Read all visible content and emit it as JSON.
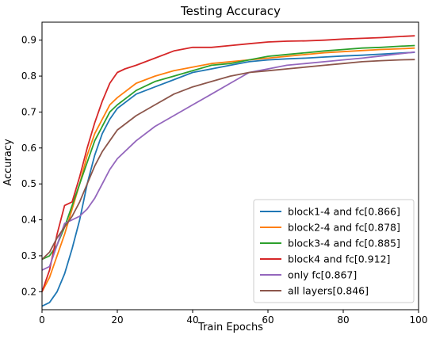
{
  "chart_data": {
    "type": "line",
    "title": "Testing Accuracy",
    "xlabel": "Train Epochs",
    "ylabel": "Accuracy",
    "xlim": [
      0,
      100
    ],
    "ylim": [
      0.15,
      0.95
    ],
    "xticks": [
      0,
      20,
      40,
      60,
      80,
      100
    ],
    "yticks": [
      0.2,
      0.3,
      0.4,
      0.5,
      0.6,
      0.7,
      0.8,
      0.9
    ],
    "grid": false,
    "legend_position": "bottom-right",
    "series": [
      {
        "name": "block1-4 and fc[0.866]",
        "color": "#1f77b4",
        "x": [
          0,
          2,
          4,
          6,
          8,
          10,
          12,
          14,
          16,
          18,
          20,
          25,
          30,
          35,
          40,
          45,
          50,
          55,
          60,
          65,
          70,
          75,
          80,
          85,
          90,
          95,
          99
        ],
        "y": [
          0.16,
          0.17,
          0.2,
          0.25,
          0.32,
          0.4,
          0.5,
          0.58,
          0.64,
          0.68,
          0.71,
          0.75,
          0.77,
          0.79,
          0.81,
          0.82,
          0.83,
          0.84,
          0.845,
          0.848,
          0.85,
          0.853,
          0.856,
          0.858,
          0.861,
          0.864,
          0.866
        ]
      },
      {
        "name": "block2-4 and fc[0.878]",
        "color": "#ff7f0e",
        "x": [
          0,
          2,
          4,
          6,
          8,
          10,
          12,
          14,
          16,
          18,
          20,
          25,
          30,
          35,
          40,
          45,
          50,
          55,
          60,
          65,
          70,
          75,
          80,
          85,
          90,
          95,
          99
        ],
        "y": [
          0.2,
          0.24,
          0.3,
          0.36,
          0.43,
          0.5,
          0.58,
          0.64,
          0.68,
          0.72,
          0.74,
          0.78,
          0.8,
          0.815,
          0.825,
          0.835,
          0.84,
          0.845,
          0.85,
          0.855,
          0.86,
          0.865,
          0.868,
          0.871,
          0.874,
          0.876,
          0.878
        ]
      },
      {
        "name": "block3-4 and fc[0.885]",
        "color": "#2ca02c",
        "x": [
          0,
          2,
          4,
          6,
          8,
          10,
          12,
          14,
          16,
          18,
          20,
          25,
          30,
          35,
          40,
          45,
          50,
          55,
          60,
          65,
          70,
          75,
          80,
          85,
          90,
          95,
          99
        ],
        "y": [
          0.29,
          0.3,
          0.33,
          0.38,
          0.44,
          0.5,
          0.56,
          0.62,
          0.66,
          0.7,
          0.72,
          0.76,
          0.785,
          0.8,
          0.815,
          0.83,
          0.835,
          0.845,
          0.855,
          0.86,
          0.865,
          0.87,
          0.874,
          0.878,
          0.88,
          0.883,
          0.885
        ]
      },
      {
        "name": "block4 and fc[0.912]",
        "color": "#d62728",
        "x": [
          0,
          2,
          4,
          6,
          8,
          10,
          12,
          14,
          16,
          18,
          20,
          22,
          25,
          30,
          35,
          40,
          45,
          50,
          55,
          60,
          65,
          70,
          75,
          80,
          85,
          90,
          95,
          99
        ],
        "y": [
          0.2,
          0.26,
          0.36,
          0.44,
          0.45,
          0.52,
          0.6,
          0.67,
          0.73,
          0.78,
          0.81,
          0.82,
          0.83,
          0.85,
          0.87,
          0.88,
          0.88,
          0.885,
          0.89,
          0.895,
          0.897,
          0.898,
          0.9,
          0.903,
          0.905,
          0.907,
          0.91,
          0.912
        ]
      },
      {
        "name": "only fc[0.867]",
        "color": "#9467bd",
        "x": [
          0,
          2,
          4,
          6,
          8,
          10,
          12,
          14,
          16,
          18,
          20,
          25,
          30,
          35,
          40,
          45,
          50,
          55,
          60,
          65,
          70,
          75,
          80,
          85,
          90,
          95,
          99
        ],
        "y": [
          0.26,
          0.27,
          0.33,
          0.39,
          0.4,
          0.41,
          0.43,
          0.46,
          0.5,
          0.54,
          0.57,
          0.62,
          0.66,
          0.69,
          0.72,
          0.75,
          0.78,
          0.81,
          0.82,
          0.83,
          0.835,
          0.84,
          0.845,
          0.85,
          0.856,
          0.862,
          0.867
        ]
      },
      {
        "name": "all layers[0.846]",
        "color": "#8c564b",
        "x": [
          0,
          2,
          4,
          6,
          8,
          10,
          12,
          14,
          16,
          18,
          20,
          25,
          30,
          35,
          40,
          45,
          50,
          55,
          60,
          65,
          70,
          75,
          80,
          85,
          90,
          95,
          99
        ],
        "y": [
          0.29,
          0.31,
          0.35,
          0.38,
          0.41,
          0.45,
          0.5,
          0.55,
          0.59,
          0.62,
          0.65,
          0.69,
          0.72,
          0.75,
          0.77,
          0.785,
          0.8,
          0.81,
          0.815,
          0.82,
          0.825,
          0.83,
          0.835,
          0.84,
          0.843,
          0.845,
          0.846
        ]
      }
    ]
  }
}
